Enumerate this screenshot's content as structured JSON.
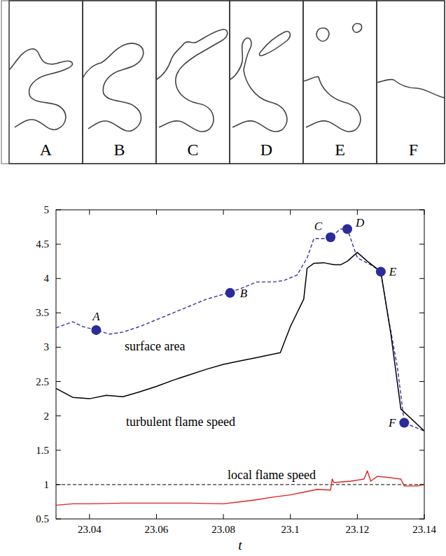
{
  "snapshots": [
    "A",
    "B",
    "C",
    "D",
    "E",
    "F"
  ],
  "chart_data": {
    "type": "line",
    "x_label": "t",
    "xlim": [
      23.03,
      23.14
    ],
    "xticks": [
      23.04,
      23.06,
      23.08,
      23.1,
      23.12,
      23.14
    ],
    "ylim": [
      0.5,
      5
    ],
    "yticks": [
      0.5,
      1,
      1.5,
      2,
      2.5,
      3,
      3.5,
      4,
      4.5,
      5
    ],
    "reference_line": {
      "value": 1,
      "line_style": "dashed"
    },
    "series": [
      {
        "name": "surface area",
        "color": "#3333a8",
        "line_style": "dashed",
        "x": [
          23.03,
          23.035,
          23.038,
          23.042,
          23.046,
          23.05,
          23.055,
          23.06,
          23.065,
          23.07,
          23.075,
          23.08,
          23.085,
          23.09,
          23.095,
          23.098,
          23.102,
          23.105,
          23.107,
          23.11,
          23.112,
          23.115,
          23.117,
          23.12,
          23.124,
          23.127,
          23.129,
          23.132,
          23.134,
          23.14
        ],
        "values": [
          3.28,
          3.37,
          3.3,
          3.25,
          3.19,
          3.22,
          3.3,
          3.4,
          3.5,
          3.6,
          3.7,
          3.77,
          3.85,
          3.95,
          3.95,
          3.97,
          4.05,
          4.3,
          4.58,
          4.58,
          4.6,
          4.72,
          4.72,
          4.3,
          4.2,
          4.1,
          3.5,
          2.7,
          1.9,
          1.78
        ]
      },
      {
        "name": "turbulent flame speed",
        "color": "#000000",
        "line_style": "solid",
        "x": [
          23.03,
          23.035,
          23.04,
          23.045,
          23.05,
          23.055,
          23.06,
          23.065,
          23.07,
          23.075,
          23.08,
          23.085,
          23.09,
          23.097,
          23.1,
          23.104,
          23.105,
          23.107,
          23.11,
          23.113,
          23.115,
          23.117,
          23.12,
          23.123,
          23.127,
          23.13,
          23.133,
          23.14
        ],
        "values": [
          2.4,
          2.27,
          2.25,
          2.3,
          2.28,
          2.35,
          2.43,
          2.52,
          2.6,
          2.68,
          2.75,
          2.8,
          2.85,
          2.92,
          3.3,
          3.7,
          4.15,
          4.22,
          4.23,
          4.2,
          4.2,
          4.25,
          4.38,
          4.25,
          4.1,
          3.2,
          2.1,
          1.78
        ]
      },
      {
        "name": "local flame speed",
        "color": "#e02020",
        "line_style": "solid",
        "x": [
          23.03,
          23.035,
          23.04,
          23.05,
          23.06,
          23.07,
          23.08,
          23.085,
          23.09,
          23.095,
          23.1,
          23.105,
          23.108,
          23.112,
          23.1125,
          23.113,
          23.118,
          23.122,
          23.123,
          23.124,
          23.126,
          23.13,
          23.133,
          23.134,
          23.138,
          23.14
        ],
        "values": [
          0.7,
          0.72,
          0.72,
          0.73,
          0.73,
          0.73,
          0.72,
          0.75,
          0.78,
          0.82,
          0.85,
          0.9,
          0.93,
          0.92,
          1.08,
          1.03,
          1.05,
          1.08,
          1.2,
          1.05,
          1.12,
          1.1,
          1.08,
          0.98,
          0.98,
          1.0
        ]
      }
    ],
    "points": [
      {
        "label": "A",
        "x": 23.042,
        "y": 3.25
      },
      {
        "label": "B",
        "x": 23.082,
        "y": 3.79
      },
      {
        "label": "C",
        "x": 23.112,
        "y": 4.6
      },
      {
        "label": "D",
        "x": 23.117,
        "y": 4.72
      },
      {
        "label": "E",
        "x": 23.127,
        "y": 4.1
      },
      {
        "label": "F",
        "x": 23.134,
        "y": 1.9
      }
    ],
    "marker": "circle"
  }
}
